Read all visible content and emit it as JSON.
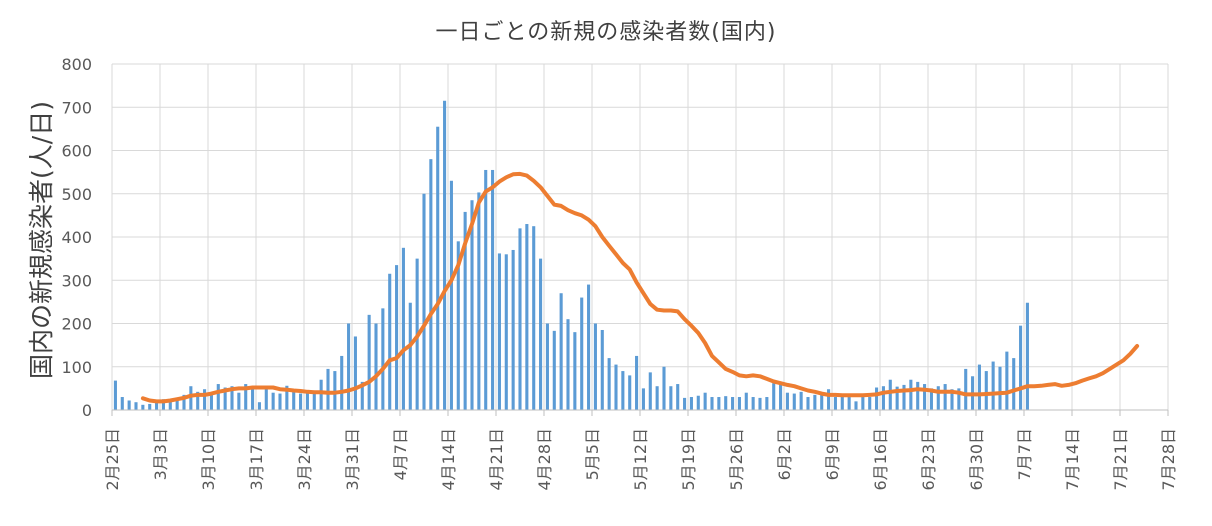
{
  "chart_data": {
    "type": "bar",
    "title": "一日ごとの新規の感染者数(国内)",
    "xlabel": "",
    "ylabel": "国内の新規感染者(人/日)",
    "ylim": [
      0,
      800
    ],
    "yticks": [
      0,
      100,
      200,
      300,
      400,
      500,
      600,
      700,
      800
    ],
    "xticks": [
      "2月25日",
      "3月3日",
      "3月10日",
      "3月17日",
      "3月24日",
      "3月31日",
      "4月7日",
      "4月14日",
      "4月21日",
      "4月28日",
      "5月5日",
      "5月12日",
      "5月19日",
      "5月26日",
      "6月2日",
      "6月9日",
      "6月16日",
      "6月23日",
      "6月30日",
      "7月7日",
      "7月14日",
      "7月21日",
      "7月28日"
    ],
    "grid": true,
    "legend": "none",
    "colors": {
      "bars": "#5b9bd5",
      "line": "#ed7d31",
      "grid": "#d9d9d9"
    },
    "series": [
      {
        "kind": "bar",
        "x_start": "2月25日",
        "values": [
          68,
          30,
          22,
          18,
          12,
          14,
          22,
          25,
          20,
          28,
          35,
          55,
          42,
          48,
          35,
          60,
          52,
          55,
          40,
          60,
          52,
          18,
          48,
          40,
          38,
          56,
          45,
          38,
          40,
          40,
          70,
          95,
          90,
          125,
          200,
          170,
          65,
          220,
          200,
          235,
          315,
          335,
          375,
          248,
          350,
          500,
          580,
          655,
          715,
          530,
          390,
          458,
          485,
          503,
          555,
          555,
          362,
          360,
          370,
          420,
          430,
          425,
          350,
          200,
          183,
          270,
          210,
          180,
          260,
          290,
          200,
          185,
          120,
          105,
          90,
          80,
          125,
          50,
          87,
          55,
          100,
          55,
          60,
          28,
          30,
          33,
          40,
          30,
          30,
          32,
          30,
          30,
          40,
          30,
          28,
          30,
          62,
          65,
          40,
          38,
          42,
          30,
          35,
          38,
          48,
          30,
          35,
          30,
          20,
          30,
          30,
          52,
          55,
          70,
          54,
          58,
          70,
          65,
          60,
          50,
          55,
          60,
          48,
          50,
          95,
          78,
          105,
          90,
          112,
          100,
          135,
          120,
          195,
          248
        ]
      },
      {
        "kind": "line",
        "x_start": "2月29日",
        "values": [
          27,
          22,
          20,
          20,
          22,
          25,
          28,
          33,
          35,
          35,
          38,
          42,
          45,
          48,
          50,
          50,
          52,
          52,
          52,
          52,
          48,
          47,
          45,
          44,
          42,
          41,
          41,
          40,
          40,
          42,
          45,
          50,
          57,
          65,
          78,
          95,
          115,
          120,
          138,
          150,
          170,
          195,
          222,
          245,
          275,
          300,
          335,
          385,
          430,
          480,
          505,
          515,
          528,
          538,
          545,
          546,
          542,
          530,
          515,
          495,
          475,
          472,
          462,
          455,
          450,
          440,
          425,
          400,
          380,
          360,
          340,
          325,
          295,
          270,
          245,
          232,
          230,
          230,
          228,
          210,
          195,
          178,
          155,
          125,
          110,
          95,
          88,
          80,
          78,
          80,
          78,
          72,
          66,
          62,
          58,
          55,
          50,
          45,
          42,
          38,
          35,
          35,
          34,
          34,
          34,
          34,
          35,
          36,
          40,
          42,
          44,
          45,
          46,
          48,
          47,
          45,
          42,
          42,
          42,
          40,
          36,
          36,
          36,
          37,
          38,
          39,
          40,
          45,
          50,
          55,
          55,
          56,
          58,
          60,
          56,
          58,
          62,
          68,
          73,
          78,
          85,
          95,
          105,
          115,
          130,
          148
        ]
      }
    ]
  }
}
